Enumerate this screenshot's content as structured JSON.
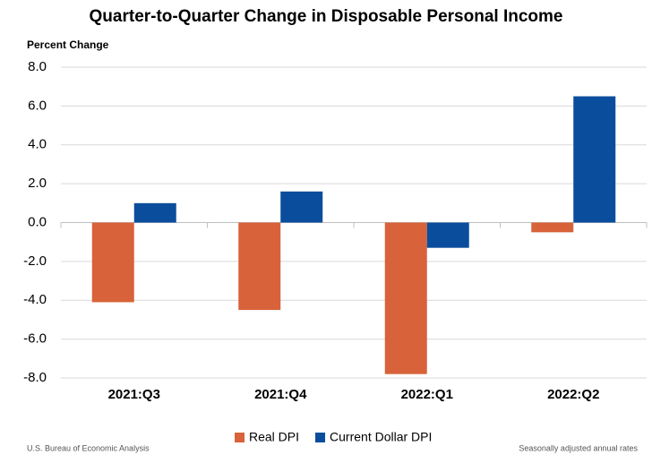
{
  "chart_data": {
    "type": "bar",
    "title": "Quarter-to-Quarter Change in Disposable Personal Income",
    "y_label": "Percent Change",
    "categories": [
      "2021:Q3",
      "2021:Q4",
      "2022:Q1",
      "2022:Q2"
    ],
    "series": [
      {
        "name": "Real DPI",
        "color": "#d8623a",
        "values": [
          -4.1,
          -4.5,
          -7.8,
          -0.5
        ]
      },
      {
        "name": "Current Dollar DPI",
        "color": "#0a4d9c",
        "values": [
          1.0,
          1.6,
          -1.3,
          6.5
        ]
      }
    ],
    "ylim": [
      -8,
      8
    ],
    "yticks": [
      {
        "value": -8,
        "label": "-8.0"
      },
      {
        "value": -6,
        "label": "-6.0"
      },
      {
        "value": -4,
        "label": "-4.0"
      },
      {
        "value": -2,
        "label": "-2.0"
      },
      {
        "value": 0,
        "label": "0.0"
      },
      {
        "value": 2,
        "label": "2.0"
      },
      {
        "value": 4,
        "label": "4.0"
      },
      {
        "value": 6,
        "label": "6.0"
      },
      {
        "value": 8,
        "label": "8.0"
      }
    ],
    "grid": true,
    "legend": "bottom",
    "source": "U.S. Bureau of Economic Analysis",
    "note": "Seasonally adjusted annual rates"
  }
}
